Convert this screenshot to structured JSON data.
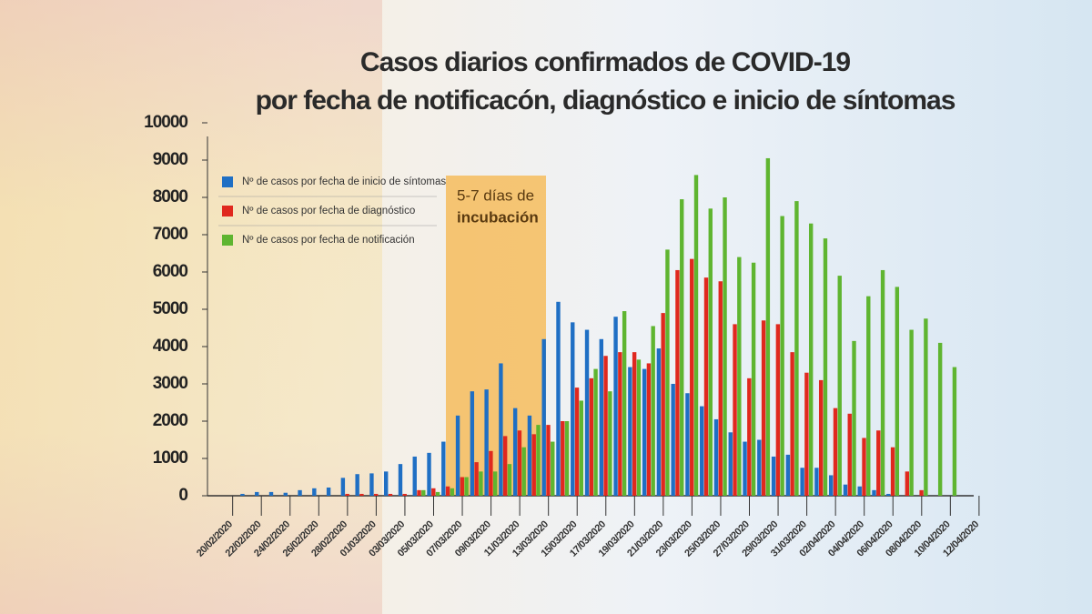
{
  "chart_data": {
    "type": "bar",
    "title": [
      "Casos diarios confirmados de COVID-19",
      "por fecha de notificacón, diagnóstico e inicio de síntomas"
    ],
    "annotation": [
      "5-7 días de",
      "incubación"
    ],
    "categories": [
      "20/02/2020",
      null,
      "22/02/2020",
      null,
      "24/02/2020",
      null,
      "26/02/2020",
      null,
      "28/02/2020",
      null,
      "01/03/2020",
      null,
      "03/03/2020",
      null,
      "05/03/2020",
      null,
      "07/03/2020",
      null,
      "09/03/2020",
      null,
      "11/03/2020",
      null,
      "13/03/2020",
      null,
      "15/03/2020",
      null,
      "17/03/2020",
      null,
      "19/03/2020",
      null,
      "21/03/2020",
      null,
      "23/03/2020",
      null,
      "25/03/2020",
      null,
      "27/03/2020",
      null,
      "29/03/2020",
      null,
      "31/03/2020",
      null,
      "02/04/2020",
      null,
      "04/04/2020",
      null,
      "06/04/2020",
      null,
      "08/04/2020",
      null,
      "10/04/2020",
      null,
      "12/04/2020"
    ],
    "series": [
      {
        "name": "Nº de casos por fecha de inicio de síntomas",
        "color": "#1f6fc4",
        "values": [
          0,
          0,
          50,
          100,
          100,
          80,
          150,
          200,
          220,
          480,
          580,
          600,
          650,
          850,
          1050,
          1150,
          1450,
          2150,
          2800,
          2850,
          3550,
          2350,
          2150,
          4200,
          5200,
          4650,
          4450,
          4200,
          4800,
          3450,
          3400,
          3950,
          3000,
          2750,
          2400,
          2050,
          1700,
          1450,
          1500,
          1050,
          1100,
          750,
          750,
          550,
          300,
          250,
          150,
          50,
          0,
          0,
          0,
          0,
          0
        ]
      },
      {
        "name": "Nº de casos por fecha de diagnóstico",
        "color": "#e0281e",
        "values": [
          0,
          0,
          0,
          0,
          0,
          0,
          0,
          0,
          0,
          50,
          50,
          50,
          50,
          50,
          150,
          200,
          250,
          500,
          900,
          1200,
          1600,
          1750,
          1650,
          1900,
          2000,
          2900,
          3150,
          3750,
          3850,
          3850,
          3550,
          4900,
          6050,
          6350,
          5850,
          5750,
          4600,
          3150,
          4700,
          4600,
          3850,
          3300,
          3100,
          2350,
          2200,
          1550,
          1750,
          1300,
          650,
          150,
          0,
          0,
          0
        ]
      },
      {
        "name": "Nº de casos por fecha de notificación",
        "color": "#5fb530",
        "values": [
          0,
          0,
          0,
          0,
          0,
          0,
          0,
          0,
          0,
          0,
          0,
          0,
          0,
          0,
          150,
          100,
          200,
          500,
          650,
          650,
          850,
          1300,
          1900,
          1450,
          2000,
          2550,
          3400,
          2800,
          4950,
          3650,
          4550,
          6600,
          7950,
          8600,
          7700,
          8000,
          6400,
          6250,
          9050,
          7500,
          7900,
          7300,
          6900,
          5900,
          4150,
          5350,
          6050,
          5600,
          4450,
          4750,
          4100,
          3450,
          0
        ]
      }
    ],
    "ylim": [
      0,
      10000
    ],
    "yticks": [
      0,
      1000,
      2000,
      3000,
      4000,
      5000,
      6000,
      7000,
      8000,
      9000,
      10000
    ],
    "grid": false
  }
}
